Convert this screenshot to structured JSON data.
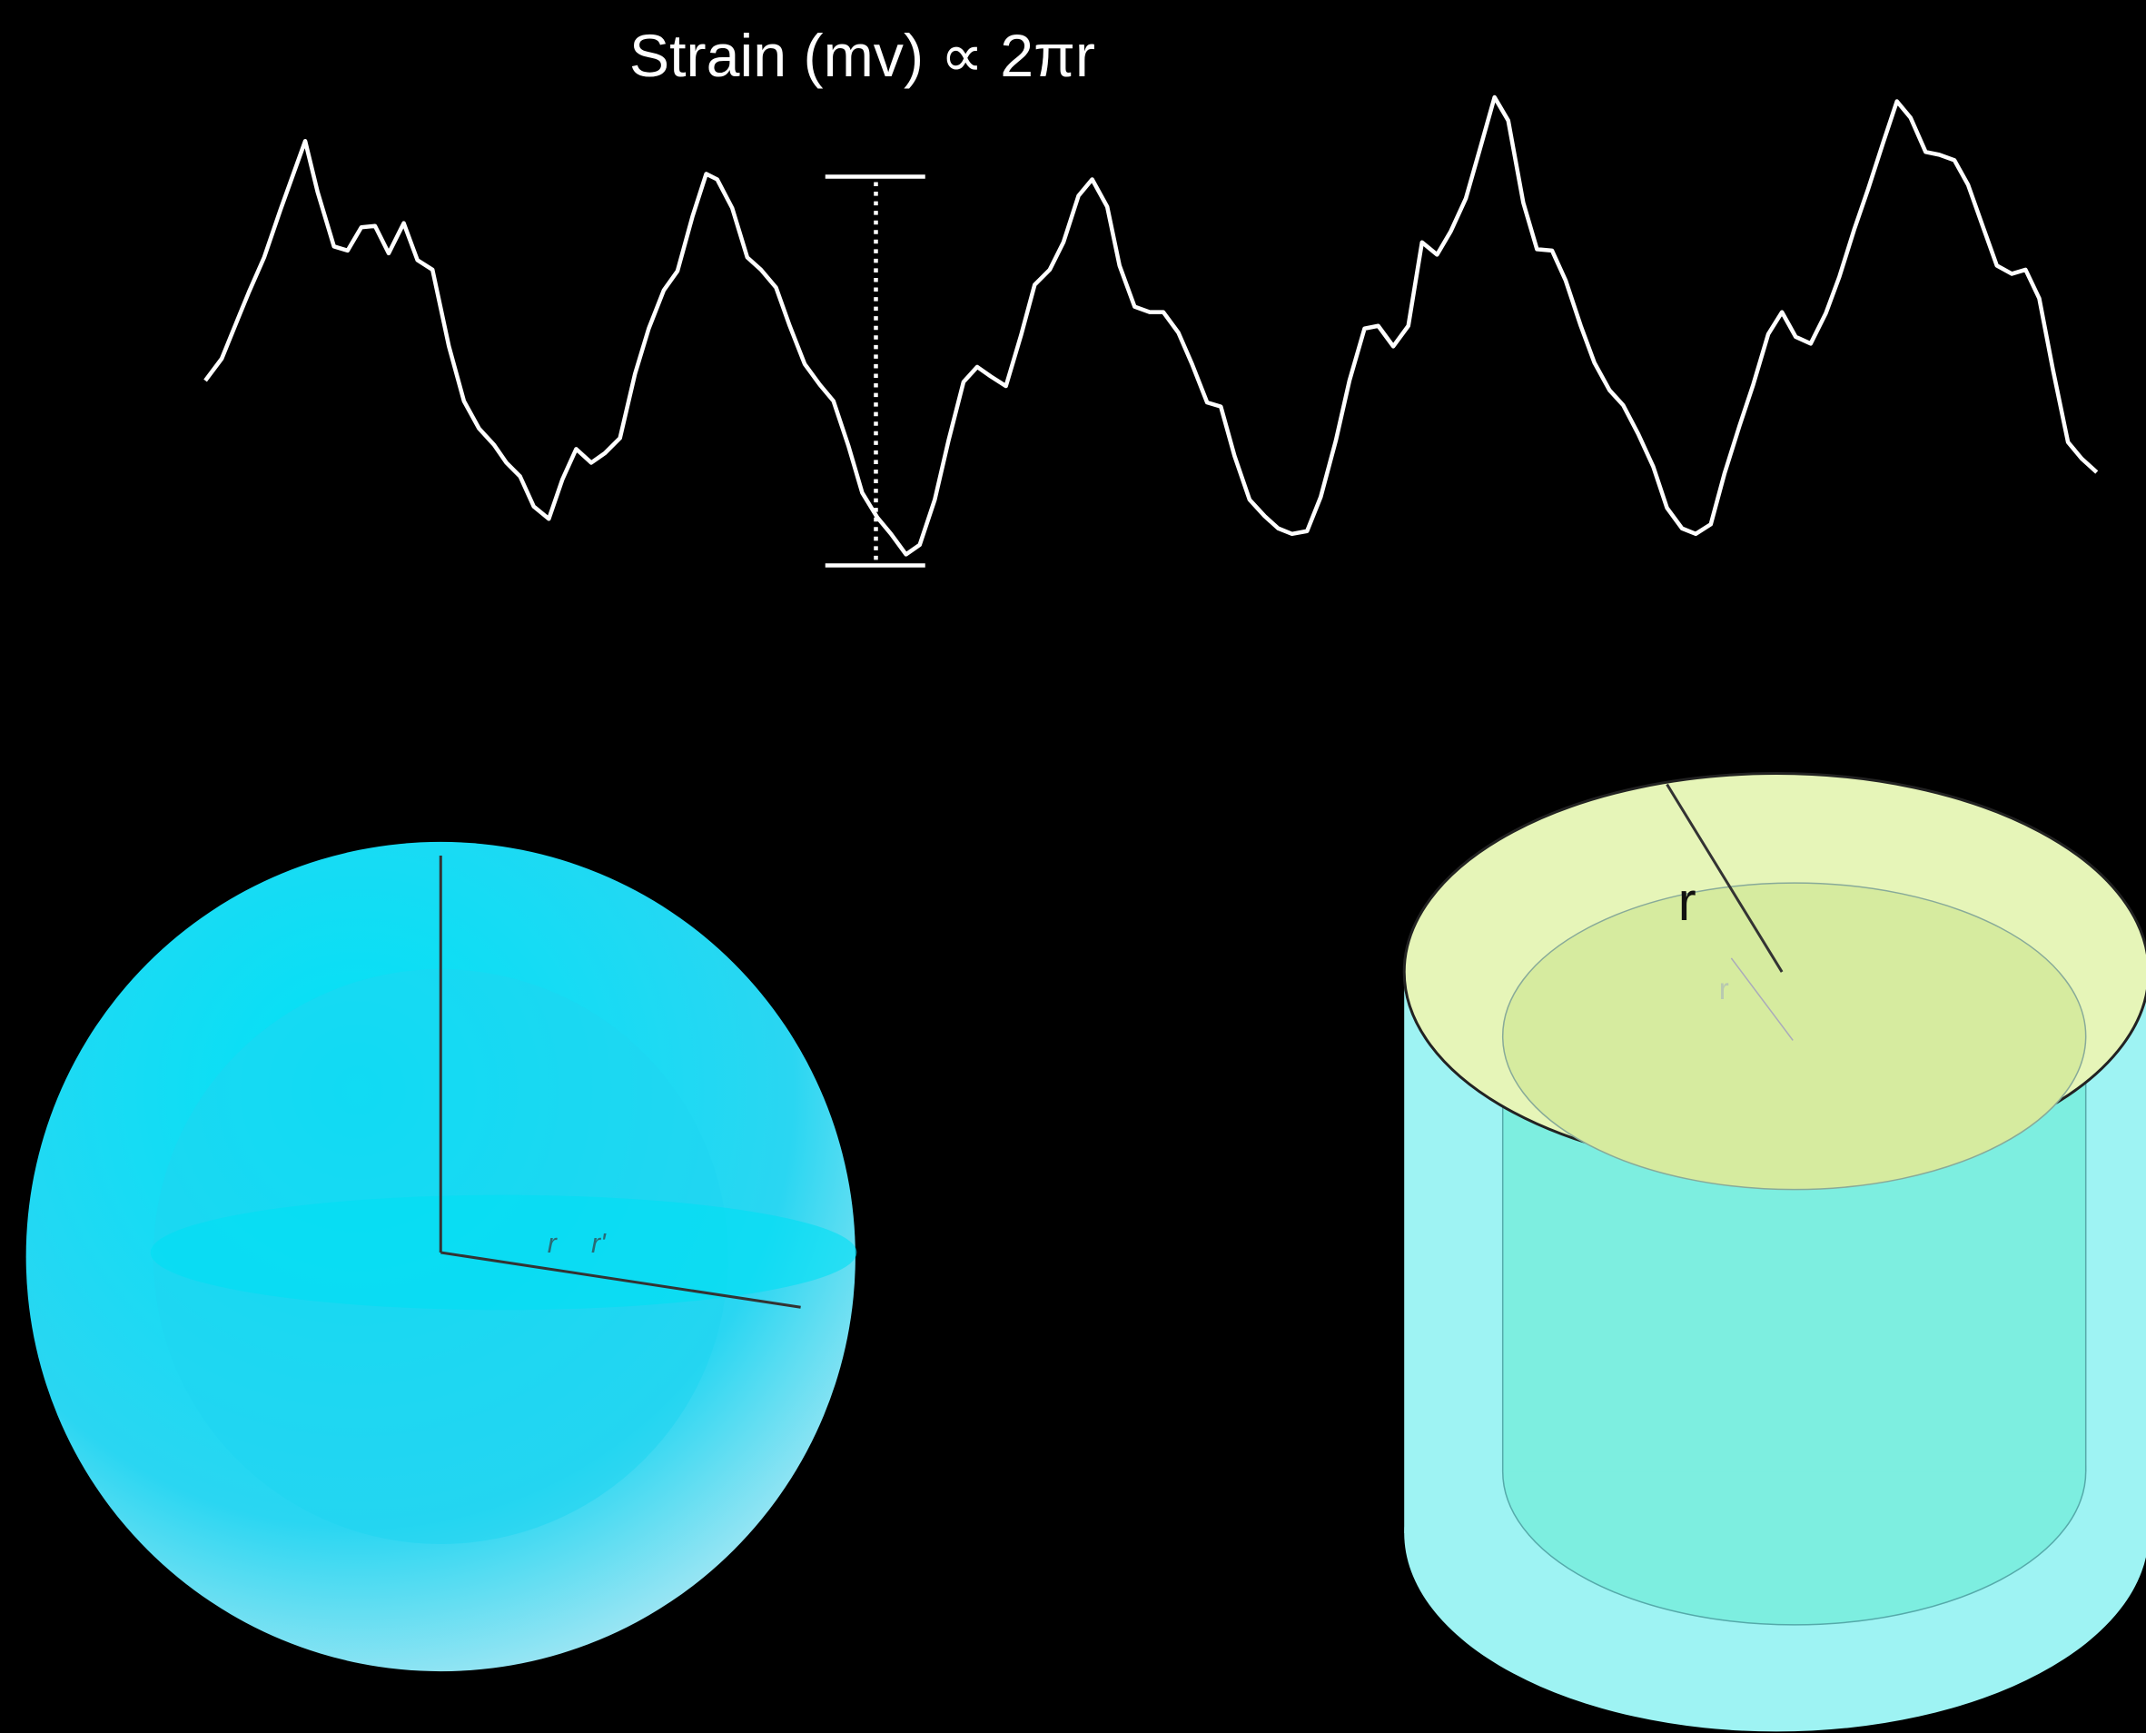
{
  "title": "Strain (mv) ∝ 2πr",
  "sphere": {
    "labels": [
      "r",
      "r'"
    ]
  },
  "cylinder": {
    "labels": [
      "r",
      "r"
    ]
  }
}
